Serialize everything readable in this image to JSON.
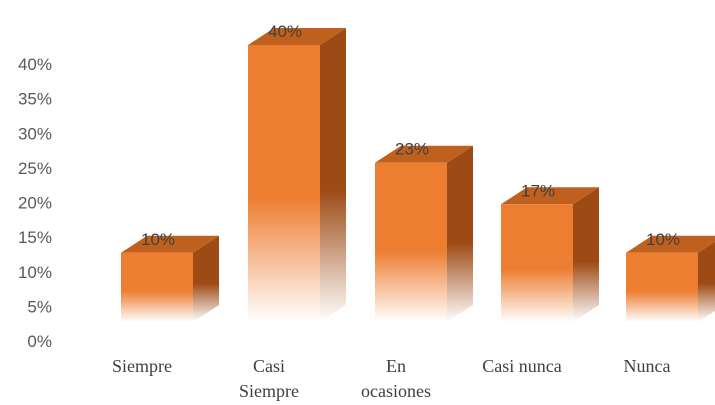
{
  "chart_data": {
    "type": "bar",
    "style": "3d-column",
    "categories": [
      "Siempre",
      "Casi Siempre",
      "En ocasiones",
      "Casi nunca",
      "Nunca"
    ],
    "category_lines": [
      [
        "Siempre"
      ],
      [
        "Casi",
        "Siempre"
      ],
      [
        "En",
        "ocasiones"
      ],
      [
        "Casi nunca"
      ],
      [
        "Nunca"
      ]
    ],
    "values": [
      10,
      40,
      23,
      17,
      10
    ],
    "data_labels": [
      "10%",
      "40%",
      "23%",
      "17%",
      "10%"
    ],
    "y_ticks": [
      "0%",
      "5%",
      "10%",
      "15%",
      "20%",
      "25%",
      "30%",
      "35%",
      "40%"
    ],
    "ylim": [
      0,
      40
    ],
    "grid": false,
    "legend": "none",
    "colors": {
      "front": "#ED7D31",
      "top": "#C0601F",
      "side": "#9E4A15"
    }
  }
}
